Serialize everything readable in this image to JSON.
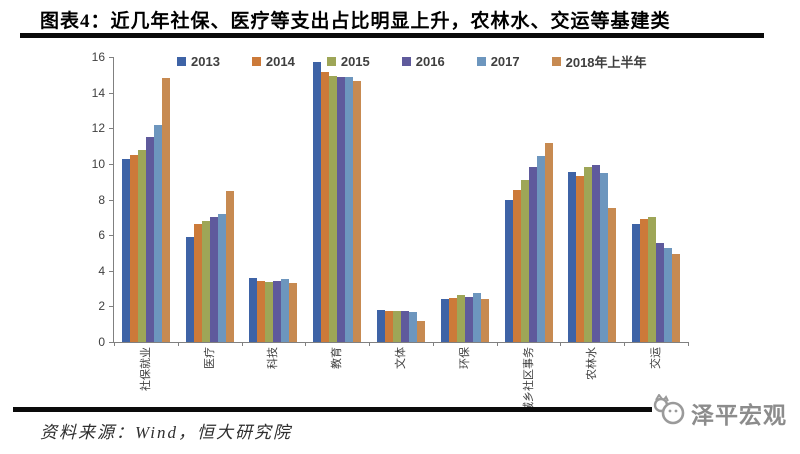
{
  "header": {
    "title": "图表4：近几年社保、医疗等支出占比明显上升，农林水、交运等基建类"
  },
  "chart_data": {
    "type": "bar",
    "title": "",
    "xlabel": "",
    "ylabel": "",
    "ylim": [
      0,
      16
    ],
    "yticks": [
      0,
      2,
      4,
      6,
      8,
      10,
      12,
      14,
      16
    ],
    "grid": false,
    "legend_position": "top",
    "categories": [
      "社保就业",
      "医疗",
      "科技",
      "教育",
      "文体",
      "环保",
      "城乡社区事务",
      "农林水",
      "交运"
    ],
    "series": [
      {
        "name": "2013",
        "color": "#3E63A6",
        "values": [
          10.3,
          5.9,
          3.6,
          15.7,
          1.8,
          2.4,
          8.0,
          9.55,
          6.65
        ]
      },
      {
        "name": "2014",
        "color": "#CC7A39",
        "values": [
          10.5,
          6.65,
          3.45,
          15.15,
          1.75,
          2.45,
          8.55,
          9.3,
          6.9
        ]
      },
      {
        "name": "2015",
        "color": "#9EA657",
        "values": [
          10.8,
          6.8,
          3.35,
          14.95,
          1.75,
          2.65,
          9.1,
          9.85,
          7.0
        ]
      },
      {
        "name": "2016",
        "color": "#5F5A9C",
        "values": [
          11.5,
          7.0,
          3.45,
          14.9,
          1.75,
          2.5,
          9.8,
          9.95,
          5.55
        ]
      },
      {
        "name": "2017",
        "color": "#6D96BE",
        "values": [
          12.2,
          7.2,
          3.55,
          14.9,
          1.7,
          2.75,
          10.45,
          9.5,
          5.25
        ]
      },
      {
        "name": "2018年上半年",
        "color": "#C78A51",
        "values": [
          14.8,
          8.5,
          3.3,
          14.65,
          1.2,
          2.4,
          11.2,
          7.5,
          4.95
        ]
      }
    ]
  },
  "footer": {
    "source": "资料来源：Wind，恒大研究院",
    "logo_text": "泽平宏观",
    "logo_icon": "cartoon-face-icon"
  }
}
